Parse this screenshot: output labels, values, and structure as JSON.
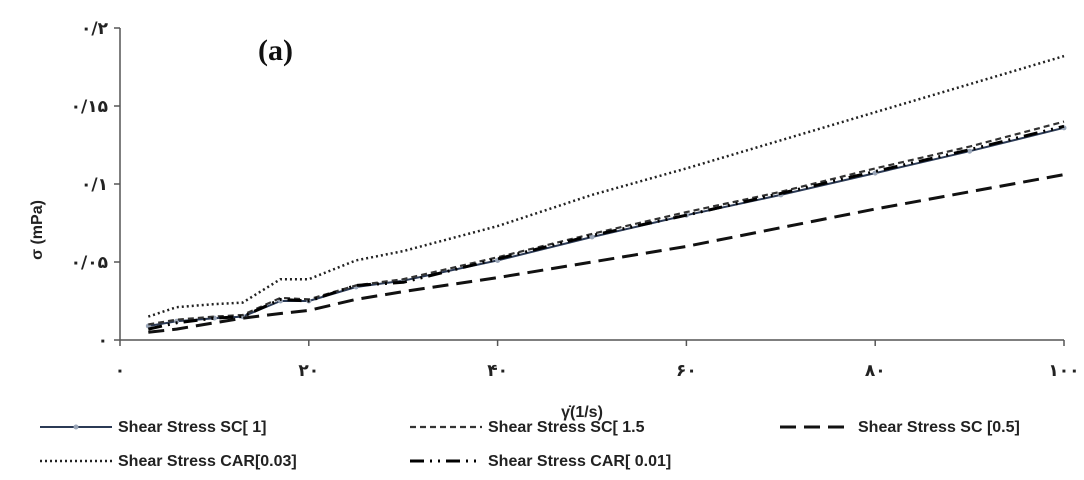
{
  "chart_data": {
    "type": "line",
    "panel_label": "(a)",
    "xlabel": "γ̇(1/s)",
    "ylabel": "σ (mPa)",
    "xlim": [
      0,
      100
    ],
    "ylim": [
      0,
      0.2
    ],
    "x_ticks": [
      {
        "value": 0,
        "label": "۰"
      },
      {
        "value": 20,
        "label": "۲۰"
      },
      {
        "value": 40,
        "label": "۴۰"
      },
      {
        "value": 60,
        "label": "۶۰"
      },
      {
        "value": 80,
        "label": "۸۰"
      },
      {
        "value": 100,
        "label": "۱۰۰"
      }
    ],
    "y_ticks": [
      {
        "value": 0,
        "label": "۰"
      },
      {
        "value": 0.05,
        "label": "۰/۰۵"
      },
      {
        "value": 0.1,
        "label": "۰/۱"
      },
      {
        "value": 0.15,
        "label": "۰/۱۵"
      },
      {
        "value": 0.2,
        "label": "۰/۲"
      }
    ],
    "grid": false,
    "legend_position": "bottom",
    "series": [
      {
        "name": "Shear Stress SC[ 1]",
        "style": "solid-marker",
        "color": "#2b3a55",
        "x": [
          3,
          6,
          10,
          13,
          17,
          20,
          25,
          30,
          40,
          50,
          60,
          70,
          80,
          90,
          100
        ],
        "y": [
          0.009,
          0.012,
          0.014,
          0.015,
          0.025,
          0.025,
          0.034,
          0.038,
          0.051,
          0.066,
          0.08,
          0.093,
          0.107,
          0.121,
          0.136
        ]
      },
      {
        "name": "Shear Stress SC[ 1.5",
        "style": "short-dash",
        "color": "#333333",
        "x": [
          3,
          6,
          10,
          13,
          17,
          20,
          25,
          30,
          40,
          50,
          60,
          70,
          80,
          90,
          100
        ],
        "y": [
          0.01,
          0.013,
          0.015,
          0.016,
          0.027,
          0.026,
          0.035,
          0.039,
          0.053,
          0.068,
          0.082,
          0.095,
          0.11,
          0.124,
          0.14
        ]
      },
      {
        "name": "Shear Stress SC [0.5]",
        "style": "long-dash",
        "color": "#111111",
        "x": [
          3,
          6,
          10,
          13,
          17,
          20,
          25,
          30,
          40,
          50,
          60,
          70,
          80,
          90,
          100
        ],
        "y": [
          0.005,
          0.007,
          0.011,
          0.014,
          0.017,
          0.019,
          0.026,
          0.031,
          0.04,
          0.05,
          0.06,
          0.072,
          0.084,
          0.095,
          0.106
        ]
      },
      {
        "name": "Shear Stress CAR[0.03]",
        "style": "dotted",
        "color": "#222222",
        "x": [
          3,
          6,
          10,
          13,
          17,
          20,
          25,
          30,
          40,
          50,
          60,
          70,
          80,
          90,
          100
        ],
        "y": [
          0.015,
          0.021,
          0.023,
          0.024,
          0.039,
          0.039,
          0.051,
          0.057,
          0.073,
          0.093,
          0.11,
          0.128,
          0.146,
          0.164,
          0.182
        ]
      },
      {
        "name": "Shear Stress CAR[ 0.01]",
        "style": "dash-dot-dot",
        "color": "#000000",
        "x": [
          3,
          6,
          10,
          13,
          17,
          20,
          25,
          30,
          40,
          50,
          60,
          70,
          80,
          90,
          100
        ],
        "y": [
          0.007,
          0.011,
          0.014,
          0.015,
          0.026,
          0.025,
          0.035,
          0.037,
          0.052,
          0.067,
          0.08,
          0.094,
          0.108,
          0.122,
          0.137
        ]
      }
    ]
  }
}
